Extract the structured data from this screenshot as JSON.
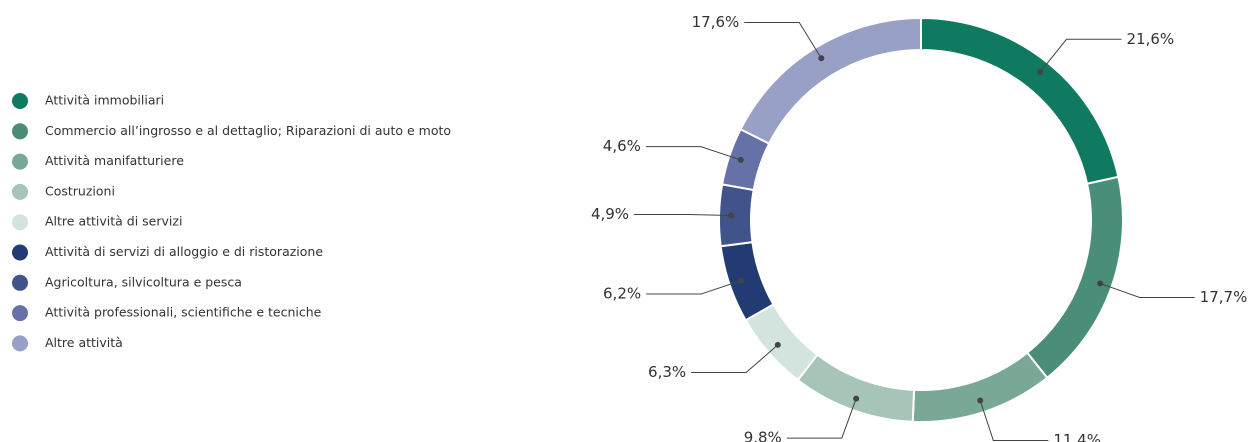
{
  "chart_data": {
    "type": "donut",
    "categories": [
      "Attività immobiliari",
      "Commercio all’ingrosso e al dettaglio; Riparazioni di auto e moto",
      "Attività manifatturiere",
      "Costruzioni",
      "Altre attività di servizi",
      "Attività di servizi di alloggio e di ristorazione",
      "Agricoltura, silvicoltura e pesca",
      "Attività professionali, scientifiche e tecniche",
      "Altre attività"
    ],
    "values": [
      21.6,
      17.7,
      11.4,
      9.8,
      6.3,
      6.2,
      4.9,
      4.6,
      17.6
    ],
    "value_labels": [
      "21,6%",
      "17,7%",
      "11,4%",
      "9,8%",
      "6,3%",
      "6,2%",
      "4,9%",
      "4,6%",
      "17,6%"
    ],
    "colors": [
      "#0f7a5f",
      "#4a8d79",
      "#79a896",
      "#a7c4b8",
      "#d3e3dd",
      "#223b73",
      "#41538b",
      "#6672a7",
      "#99a0c6"
    ]
  }
}
